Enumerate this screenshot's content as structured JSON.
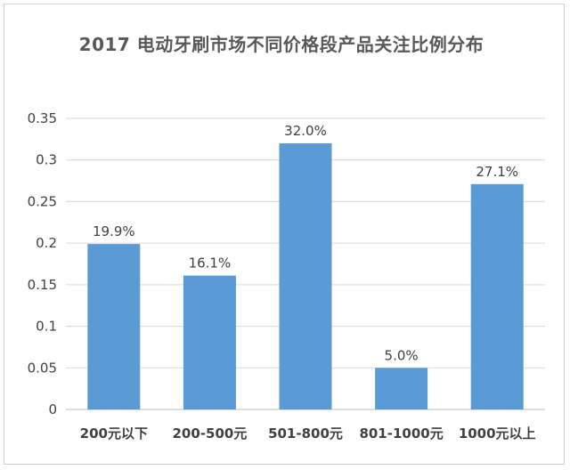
{
  "chart_data": {
    "type": "bar",
    "title": "2017 电动牙刷市场不同价格段产品关注比例分布",
    "xlabel": "",
    "ylabel": "",
    "categories": [
      "200元以下",
      "200-500元",
      "501-800元",
      "801-1000元",
      "1000元以上"
    ],
    "values": [
      0.199,
      0.161,
      0.32,
      0.05,
      0.271
    ],
    "data_labels": [
      "19.9%",
      "16.1%",
      "32.0%",
      "5.0%",
      "27.1%"
    ],
    "ylim": [
      0,
      0.35
    ],
    "yticks": [
      0,
      0.05,
      0.1,
      0.15,
      0.2,
      0.25,
      0.3,
      0.35
    ],
    "ytick_labels": [
      "0",
      "0.05",
      "0.1",
      "0.15",
      "0.2",
      "0.25",
      "0.3",
      "0.35"
    ],
    "grid": true,
    "legend": "none",
    "bar_color": "#5b9bd5",
    "grid_color": "#d9d9d9"
  }
}
